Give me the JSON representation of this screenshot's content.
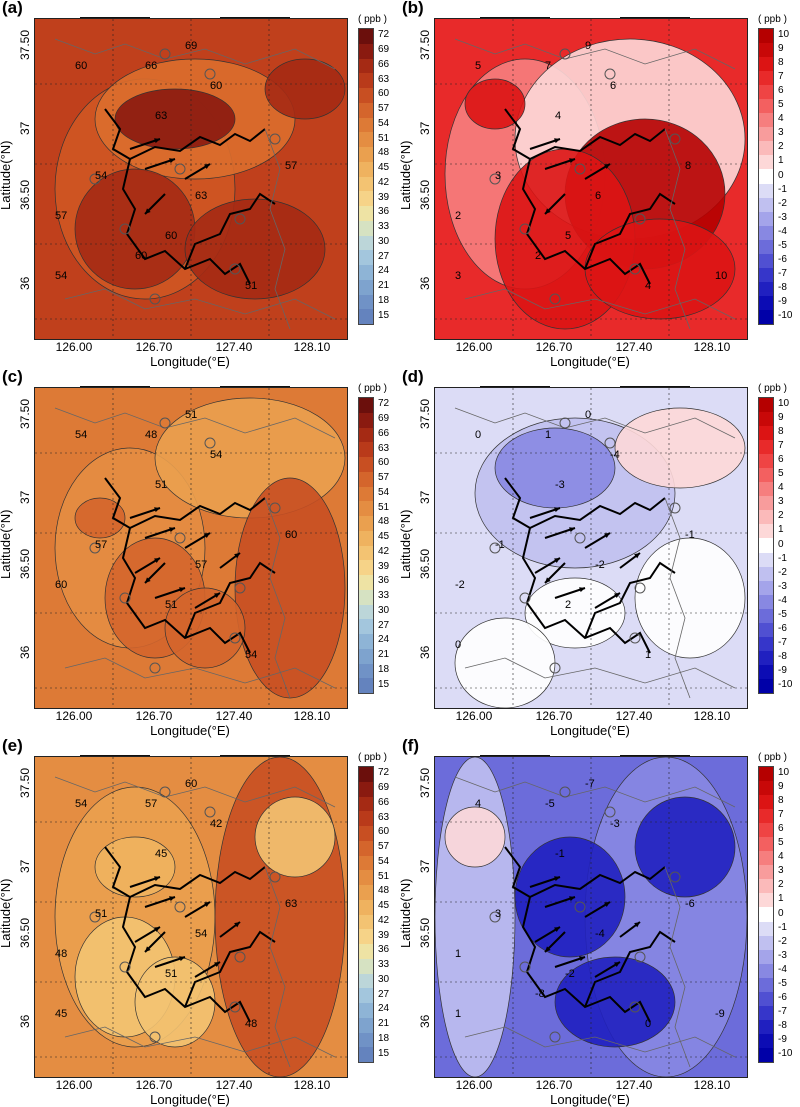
{
  "common": {
    "xlabel": "Longitude(°E)",
    "ylabel": "Latitude(°N)",
    "xticks": [
      "126.00",
      "126.70",
      "127.40",
      "128.10"
    ],
    "yticks": [
      "36",
      "36.50",
      "37",
      "37.50"
    ],
    "unit": "( ppb )"
  },
  "colorbars": {
    "absolute": {
      "labels": [
        "72",
        "69",
        "66",
        "63",
        "60",
        "57",
        "54",
        "51",
        "48",
        "45",
        "42",
        "39",
        "36",
        "33",
        "30",
        "27",
        "24",
        "21",
        "18",
        "15"
      ],
      "colors": [
        "#6b0f0c",
        "#8a1a10",
        "#a52a14",
        "#b93a1a",
        "#c84f22",
        "#d4652c",
        "#dd7a36",
        "#e48d42",
        "#eaa04f",
        "#efb25f",
        "#f3c372",
        "#f6d388",
        "#eee3a4",
        "#d6e2c2",
        "#bcd6d9",
        "#a3c6dd",
        "#8eb4d6",
        "#7ea3ce",
        "#7092c6",
        "#6483be"
      ]
    },
    "difference": {
      "labels": [
        "10",
        "9",
        "8",
        "7",
        "6",
        "5",
        "4",
        "3",
        "2",
        "1",
        "0",
        "-1",
        "-2",
        "-3",
        "-4",
        "-5",
        "-6",
        "-7",
        "-8",
        "-9",
        "-10"
      ],
      "colors": [
        "#b50000",
        "#c80808",
        "#dc1414",
        "#e82a2a",
        "#ef4444",
        "#f36060",
        "#f67e7e",
        "#f89c9c",
        "#fbbaba",
        "#fdd8d8",
        "#ffffff",
        "#dcdcf6",
        "#c0c0f0",
        "#a4a4ea",
        "#8888e2",
        "#6c6cda",
        "#5050d2",
        "#3636ca",
        "#2020c0",
        "#0c0cb4",
        "#0000a8"
      ]
    }
  },
  "panels": [
    {
      "id": "a",
      "letter": "(a)",
      "scale": "absolute",
      "contour_labels": [
        "60",
        "54",
        "57",
        "63",
        "60",
        "66",
        "69",
        "57",
        "63",
        "60",
        "51",
        "54",
        "60"
      ],
      "background": [
        "#c0401c",
        "#cf5724",
        "#dc6e2e",
        "#8a1a10",
        "#a52a14"
      ]
    },
    {
      "id": "b",
      "letter": "(b)",
      "scale": "difference",
      "contour_labels": [
        "5",
        "3",
        "2",
        "4",
        "6",
        "7",
        "9",
        "8",
        "6",
        "5",
        "4",
        "3",
        "2",
        "10"
      ],
      "background": [
        "#e82a2a",
        "#f67e7e",
        "#fdd8d8",
        "#b50000",
        "#dc1414"
      ]
    },
    {
      "id": "c",
      "letter": "(c)",
      "scale": "absolute",
      "contour_labels": [
        "54",
        "57",
        "60",
        "51",
        "54",
        "48",
        "51",
        "60",
        "57",
        "51",
        "54"
      ],
      "background": [
        "#dd7a36",
        "#e48d42",
        "#eaa04f",
        "#c84f22",
        "#d4652c"
      ]
    },
    {
      "id": "d",
      "letter": "(d)",
      "scale": "difference",
      "contour_labels": [
        "0",
        "-1",
        "-2",
        "-3",
        "-4",
        "1",
        "0",
        "-1",
        "-2",
        "2",
        "1",
        "0"
      ],
      "background": [
        "#dcdcf6",
        "#c0c0f0",
        "#8888e2",
        "#fdd8d8",
        "#ffffff"
      ]
    },
    {
      "id": "e",
      "letter": "(e)",
      "scale": "absolute",
      "contour_labels": [
        "54",
        "51",
        "48",
        "45",
        "42",
        "57",
        "60",
        "63",
        "54",
        "51",
        "48",
        "45"
      ],
      "background": [
        "#e48d42",
        "#eaa04f",
        "#efb25f",
        "#c84f22",
        "#f3c372"
      ]
    },
    {
      "id": "f",
      "letter": "(f)",
      "scale": "difference",
      "contour_labels": [
        "4",
        "3",
        "1",
        "-1",
        "-3",
        "-5",
        "-7",
        "-6",
        "-4",
        "-2",
        "0",
        "1",
        "-8",
        "-9"
      ],
      "background": [
        "#6c6cda",
        "#8888e2",
        "#c0c0f0",
        "#fdd8d8",
        "#2020c0"
      ]
    }
  ]
}
